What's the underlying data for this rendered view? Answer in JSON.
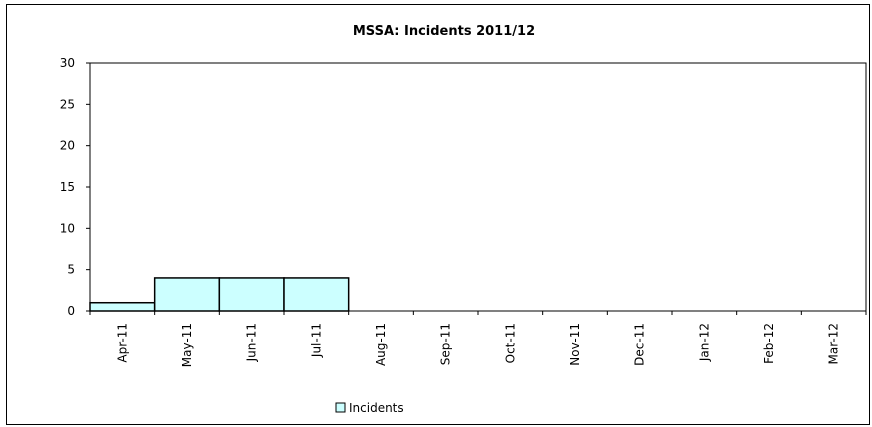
{
  "chart_data": {
    "type": "bar",
    "title": "MSSA: Incidents 2011/12",
    "xlabel": "",
    "ylabel": "",
    "categories": [
      "Apr-11",
      "May-11",
      "Jun-11",
      "Jul-11",
      "Aug-11",
      "Sep-11",
      "Oct-11",
      "Nov-11",
      "Dec-11",
      "Jan-12",
      "Feb-12",
      "Mar-12"
    ],
    "series": [
      {
        "name": "Incidents",
        "values": [
          1,
          4,
          4,
          4,
          0,
          0,
          0,
          0,
          0,
          0,
          0,
          0
        ]
      }
    ],
    "ylim": [
      0,
      30
    ],
    "yticks": [
      0,
      5,
      10,
      15,
      20,
      25,
      30
    ],
    "grid": false,
    "legend": "bottom-center",
    "colors": {
      "bar_fill": "#ccffff",
      "bar_edge": "#000000",
      "axis": "#000000"
    }
  }
}
